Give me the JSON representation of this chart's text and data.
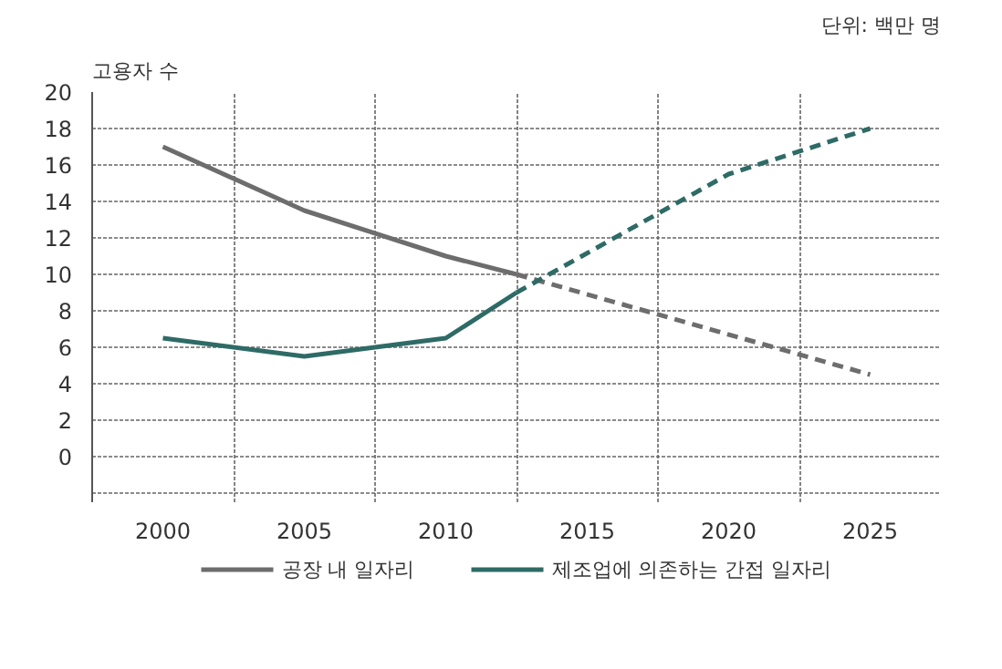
{
  "chart_data": {
    "type": "line",
    "ylabel": "고용자 수",
    "annotations": [
      "단위: 백만 명"
    ],
    "xlim": [
      1997.5,
      2027.5
    ],
    "xticks": [
      2000,
      {
        "value": 2002.5,
        "label": null
      },
      2005,
      {
        "value": 2007.5,
        "label": null
      },
      2010,
      {
        "value": 2012.5,
        "label": null
      },
      2015,
      {
        "value": 2017.5,
        "label": null
      },
      2020,
      {
        "value": 2022.5,
        "label": null
      },
      2025
    ],
    "ylim": [
      -2.5,
      20
    ],
    "yticks": [
      {
        "value": -2,
        "label": null
      },
      0,
      2,
      4,
      6,
      8,
      10,
      12,
      14,
      16,
      18,
      20
    ],
    "grid": true,
    "legend": "bottom",
    "marker": "none",
    "series": [
      {
        "name": "공장 내 일자리",
        "color": "#6d6d6d",
        "x": [
          2000,
          2005,
          2010,
          2012.5
        ],
        "values": [
          17,
          13.5,
          11,
          10
        ],
        "line_style": "solid"
      },
      {
        "color": "#6d6d6d",
        "x": [
          2012.5,
          2025
        ],
        "values": [
          10,
          4.5
        ],
        "line_style": "dashed"
      },
      {
        "name": "제조업에 의존하는 간접 일자리",
        "color": "#2e6b66",
        "x": [
          2000,
          2005,
          2010,
          2012.5
        ],
        "values": [
          6.5,
          5.5,
          6.5,
          9
        ],
        "line_style": "solid"
      },
      {
        "color": "#2e6b66",
        "x": [
          2012.5,
          2020,
          2025
        ],
        "values": [
          9,
          15.5,
          18
        ],
        "line_style": "dashed"
      }
    ]
  }
}
